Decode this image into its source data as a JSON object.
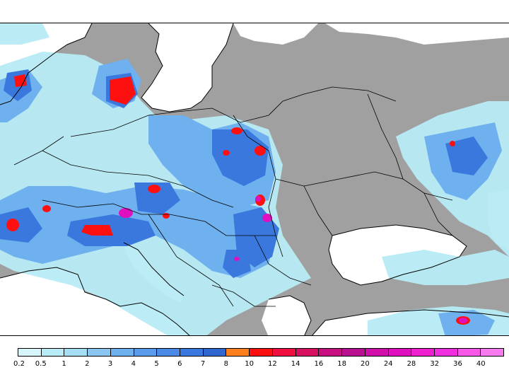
{
  "map": {
    "land_color": "#a0a0a0",
    "water_color": "#ffffff",
    "border_color": "#000000"
  },
  "legend": {
    "labels": [
      "0.2",
      "0.5",
      "1",
      "2",
      "3",
      "4",
      "5",
      "6",
      "7",
      "8",
      "10",
      "12",
      "14",
      "16",
      "18",
      "20",
      "24",
      "28",
      "32",
      "36",
      "40"
    ],
    "colors": [
      "#d6f6fb",
      "#b8ecf6",
      "#a6def4",
      "#8bc6f1",
      "#6fb0ee",
      "#5a9ceb",
      "#4a8ae6",
      "#3b78de",
      "#2f66d0",
      "#ff7f1e",
      "#ff1010",
      "#ef1040",
      "#d81060",
      "#c81080",
      "#b81090",
      "#d010a8",
      "#e010c0",
      "#f020d0",
      "#f030e0",
      "#f858e8",
      "#f87cf0"
    ]
  },
  "precip_areas": [
    {
      "level": "low",
      "color": "#b8ecf6"
    },
    {
      "level": "medium",
      "color": "#6fb0ee"
    },
    {
      "level": "high",
      "color": "#3b78de"
    },
    {
      "level": "heavy",
      "color": "#ff1010"
    },
    {
      "level": "extreme",
      "color": "#e010c0"
    }
  ]
}
